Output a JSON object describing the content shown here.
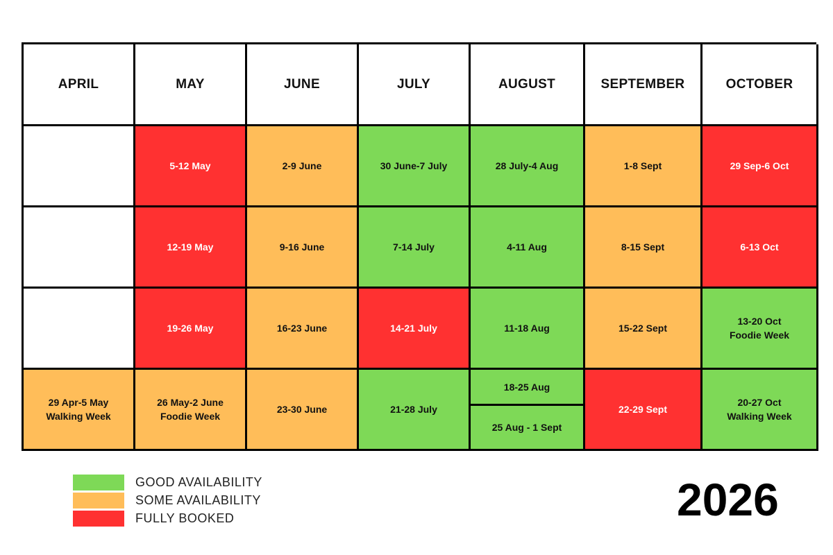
{
  "months": [
    "APRIL",
    "MAY",
    "JUNE",
    "JULY",
    "AUGUST",
    "SEPTEMBER",
    "OCTOBER"
  ],
  "colors": {
    "good": "#7ed957",
    "some": "#ffbd59",
    "full": "#ff3131"
  },
  "weeks": {
    "april": {
      "w4": {
        "line1": "29 Apr-5 May",
        "line2": "Walking Week",
        "status": "some"
      }
    },
    "may": {
      "w1": {
        "line1": "5-12 May",
        "status": "full"
      },
      "w2": {
        "line1": "12-19 May",
        "status": "full"
      },
      "w3": {
        "line1": "19-26 May",
        "status": "full"
      },
      "w4": {
        "line1": "26 May-2 June",
        "line2": "Foodie Week",
        "status": "some"
      }
    },
    "june": {
      "w1": {
        "line1": "2-9 June",
        "status": "some"
      },
      "w2": {
        "line1": "9-16 June",
        "status": "some"
      },
      "w3": {
        "line1": "16-23 June",
        "status": "some"
      },
      "w4": {
        "line1": "23-30 June",
        "status": "some"
      }
    },
    "july": {
      "w1": {
        "line1": "30 June-7 July",
        "status": "good"
      },
      "w2": {
        "line1": "7-14 July",
        "status": "good"
      },
      "w3": {
        "line1": "14-21 July",
        "status": "full"
      },
      "w4": {
        "line1": "21-28 July",
        "status": "good"
      }
    },
    "august": {
      "w1": {
        "line1": "28 July-4 Aug",
        "status": "good"
      },
      "w2": {
        "line1": "4-11 Aug",
        "status": "good"
      },
      "w3": {
        "line1": "11-18 Aug",
        "status": "good"
      },
      "w4a": {
        "line1": "18-25 Aug",
        "status": "good"
      },
      "w4b": {
        "line1": "25 Aug - 1 Sept",
        "status": "good"
      }
    },
    "september": {
      "w1": {
        "line1": "1-8 Sept",
        "status": "some"
      },
      "w2": {
        "line1": "8-15 Sept",
        "status": "some"
      },
      "w3": {
        "line1": "15-22 Sept",
        "status": "some"
      },
      "w4": {
        "line1": "22-29 Sept",
        "status": "full"
      }
    },
    "october": {
      "w1": {
        "line1": "29 Sep-6 Oct",
        "status": "full"
      },
      "w2": {
        "line1": "6-13 Oct",
        "status": "full"
      },
      "w3": {
        "line1": "13-20 Oct",
        "line2": "Foodie Week",
        "status": "good"
      },
      "w4": {
        "line1": "20-27 Oct",
        "line2": "Walking Week",
        "status": "good"
      }
    }
  },
  "legend": [
    {
      "label": "GOOD AVAILABILITY",
      "status": "good"
    },
    {
      "label": "SOME AVAILABILITY",
      "status": "some"
    },
    {
      "label": "FULLY BOOKED",
      "status": "full"
    }
  ],
  "year": "2026"
}
